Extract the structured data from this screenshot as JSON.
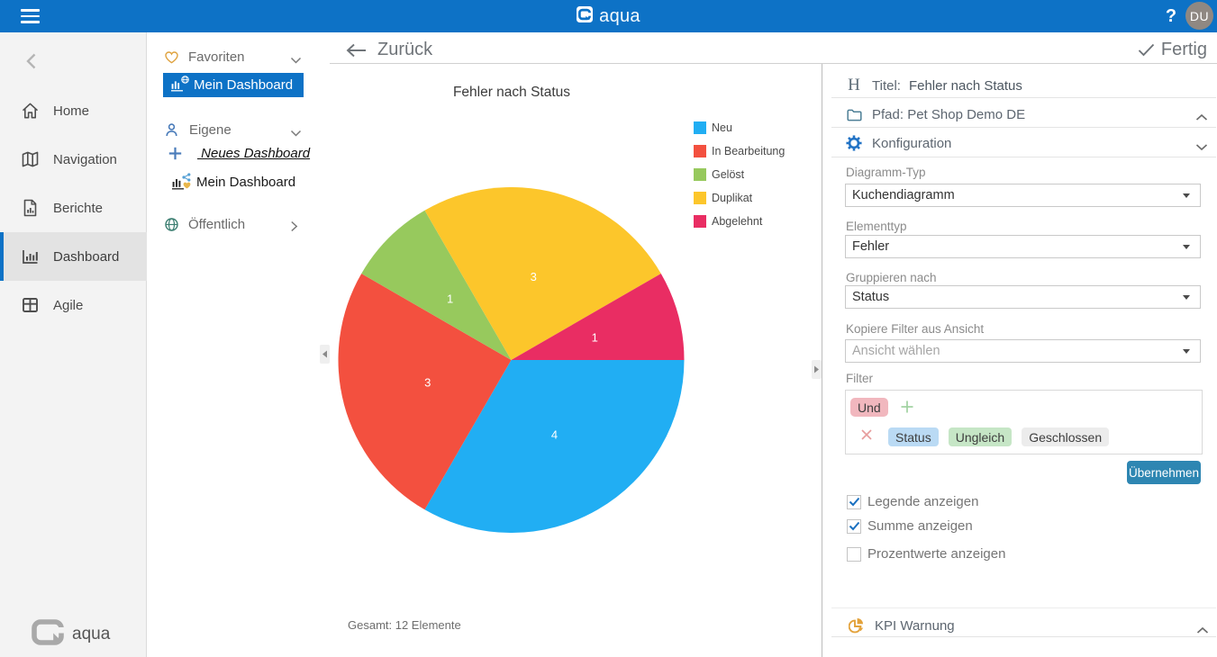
{
  "topbar": {
    "brand": "aqua",
    "help_label": "?",
    "avatar_initials": "DU"
  },
  "sidebar": {
    "items": [
      {
        "label": "Home"
      },
      {
        "label": "Navigation"
      },
      {
        "label": "Berichte"
      },
      {
        "label": "Dashboard"
      },
      {
        "label": "Agile"
      }
    ],
    "selected_item": "Dashboard",
    "footer_brand": "aqua"
  },
  "tree": {
    "favorites_header": "Favoriten",
    "favorite_item": "Mein Dashboard",
    "own_header": "Eigene",
    "new_dashboard_label": " Neues Dashboard",
    "own_item": "Mein Dashboard",
    "public_header": "Öffentlich"
  },
  "header": {
    "back_label": "Zurück",
    "done_label": "Fertig"
  },
  "panel": {
    "title_label": "Titel:",
    "title_value": "Fehler nach Status",
    "path_label": "Pfad: Pet Shop Demo DE",
    "config_label": "Konfiguration",
    "fields": [
      {
        "label": "Diagramm-Typ",
        "value": "Kuchendiagramm"
      },
      {
        "label": "Elementtyp",
        "value": "Fehler"
      },
      {
        "label": "Gruppieren nach",
        "value": "Status"
      },
      {
        "label": "Kopiere Filter aus Ansicht",
        "placeholder": "Ansicht wählen"
      }
    ],
    "filter_label": "Filter",
    "filter": {
      "operator": "Und",
      "conditions": [
        "Status",
        "Ungleich",
        "Geschlossen"
      ]
    },
    "apply_label": "Übernehmen",
    "checkboxes": [
      {
        "label": "Legende anzeigen",
        "checked": true
      },
      {
        "label": "Summe anzeigen",
        "checked": true
      },
      {
        "label": "Prozentwerte anzeigen",
        "checked": false
      }
    ],
    "kpi_label": "KPI Warnung"
  },
  "chart_data": {
    "type": "pie",
    "title": "Fehler nach Status",
    "series": [
      {
        "name": "Neu",
        "value": 4,
        "color": "#21AEF3"
      },
      {
        "name": "In Bearbeitung",
        "value": 3,
        "color": "#F3503F"
      },
      {
        "name": "Gelöst",
        "value": 1,
        "color": "#97C95D"
      },
      {
        "name": "Duplikat",
        "value": 3,
        "color": "#FCC62B"
      },
      {
        "name": "Abgelehnt",
        "value": 1,
        "color": "#E92D63"
      }
    ],
    "total": 12,
    "total_label": "Gesamt: 12 Elemente",
    "legend_position": "right",
    "start_angle_deg": 0,
    "sweep": "clockwise-from-east",
    "label_radius_ratio": 0.5,
    "radius_px": 192
  },
  "colors": {
    "brand_blue": "#0d72c6",
    "apply_button": "#2e86b2",
    "chip_operator": "#f1b7be",
    "chip_field": "#badaf4",
    "chip_op": "#c6e6c6",
    "chip_value": "#ececec"
  }
}
